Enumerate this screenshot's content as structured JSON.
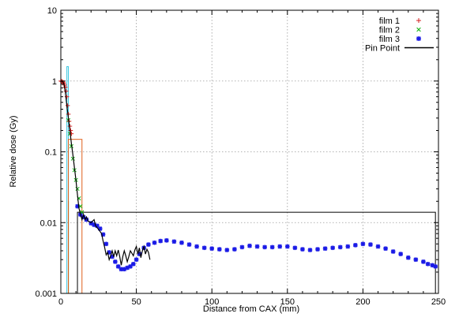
{
  "chart_data": {
    "type": "scatter",
    "xlabel": "Distance from CAX (mm)",
    "ylabel": "Relative dose (Gy)",
    "xlim": [
      0,
      250
    ],
    "ylim": [
      0.001,
      10
    ],
    "yscale": "log",
    "grid": true,
    "legend_position": "top-right",
    "x_ticks": [
      "0",
      "50",
      "100",
      "150",
      "200",
      "250"
    ],
    "y_ticks": [
      "0.001",
      "0.01",
      "0.1",
      "1",
      "10"
    ],
    "series": [
      {
        "name": "film 1",
        "marker": "+",
        "color": "#d62020",
        "points": [
          [
            0,
            1.0
          ],
          [
            0.5,
            0.99
          ],
          [
            1,
            0.98
          ],
          [
            1.5,
            0.96
          ],
          [
            2,
            0.93
          ],
          [
            2.5,
            0.88
          ],
          [
            3,
            0.82
          ],
          [
            3.5,
            0.72
          ],
          [
            4,
            0.6
          ],
          [
            4.5,
            0.45
          ],
          [
            5,
            0.34
          ],
          [
            5.5,
            0.27
          ],
          [
            6,
            0.23
          ],
          [
            6.5,
            0.2
          ],
          [
            7,
            0.18
          ]
        ]
      },
      {
        "name": "film 2",
        "marker": "x",
        "color": "#10b010",
        "points": [
          [
            5,
            0.28
          ],
          [
            6,
            0.18
          ],
          [
            7,
            0.12
          ],
          [
            8,
            0.08
          ],
          [
            9,
            0.055
          ],
          [
            10,
            0.04
          ],
          [
            11,
            0.03
          ],
          [
            12,
            0.022
          ],
          [
            13,
            0.017
          ],
          [
            14,
            0.014
          ]
        ]
      },
      {
        "name": "film 3",
        "marker": "*",
        "color": "#1a1ae6",
        "points": [
          [
            11,
            0.017
          ],
          [
            13,
            0.013
          ],
          [
            15,
            0.012
          ],
          [
            17,
            0.011
          ],
          [
            20,
            0.0098
          ],
          [
            22,
            0.0093
          ],
          [
            24,
            0.009
          ],
          [
            26,
            0.0082
          ],
          [
            28,
            0.0068
          ],
          [
            30,
            0.005
          ],
          [
            32,
            0.0038
          ],
          [
            34,
            0.0033
          ],
          [
            36,
            0.0028
          ],
          [
            38,
            0.0024
          ],
          [
            40,
            0.0022
          ],
          [
            42,
            0.0022
          ],
          [
            44,
            0.0023
          ],
          [
            46,
            0.0024
          ],
          [
            48,
            0.0026
          ],
          [
            50,
            0.003
          ],
          [
            52,
            0.0036
          ],
          [
            55,
            0.0044
          ],
          [
            58,
            0.0049
          ],
          [
            62,
            0.0052
          ],
          [
            66,
            0.0055
          ],
          [
            70,
            0.0056
          ],
          [
            75,
            0.0054
          ],
          [
            80,
            0.0052
          ],
          [
            85,
            0.0049
          ],
          [
            90,
            0.0046
          ],
          [
            95,
            0.0044
          ],
          [
            100,
            0.0043
          ],
          [
            105,
            0.0042
          ],
          [
            110,
            0.0041
          ],
          [
            115,
            0.0042
          ],
          [
            120,
            0.0045
          ],
          [
            125,
            0.0047
          ],
          [
            130,
            0.0046
          ],
          [
            135,
            0.0045
          ],
          [
            140,
            0.0045
          ],
          [
            145,
            0.0046
          ],
          [
            150,
            0.0046
          ],
          [
            155,
            0.0044
          ],
          [
            160,
            0.0042
          ],
          [
            165,
            0.0041
          ],
          [
            170,
            0.0042
          ],
          [
            175,
            0.0043
          ],
          [
            180,
            0.0044
          ],
          [
            185,
            0.0045
          ],
          [
            190,
            0.0046
          ],
          [
            195,
            0.0048
          ],
          [
            200,
            0.005
          ],
          [
            205,
            0.0049
          ],
          [
            210,
            0.0046
          ],
          [
            215,
            0.0043
          ],
          [
            220,
            0.0039
          ],
          [
            225,
            0.0036
          ],
          [
            230,
            0.0032
          ],
          [
            235,
            0.003
          ],
          [
            240,
            0.0028
          ],
          [
            243,
            0.0026
          ],
          [
            246,
            0.0025
          ],
          [
            248,
            0.0024
          ]
        ]
      },
      {
        "name": "Pin Point",
        "marker": "line",
        "color": "#000000",
        "points": [
          [
            0,
            1.0
          ],
          [
            1,
            0.99
          ],
          [
            2,
            0.92
          ],
          [
            3,
            0.7
          ],
          [
            4,
            0.45
          ],
          [
            5,
            0.3
          ],
          [
            6,
            0.2
          ],
          [
            7,
            0.13
          ],
          [
            8,
            0.09
          ],
          [
            9,
            0.06
          ],
          [
            10,
            0.04
          ],
          [
            11,
            0.025
          ],
          [
            12,
            0.016
          ],
          [
            13,
            0.013
          ],
          [
            14,
            0.011
          ],
          [
            15,
            0.013
          ],
          [
            16,
            0.011
          ],
          [
            17,
            0.012
          ],
          [
            18,
            0.0105
          ],
          [
            20,
            0.01
          ],
          [
            22,
            0.011
          ],
          [
            23,
            0.009
          ],
          [
            25,
            0.008
          ],
          [
            27,
            0.007
          ],
          [
            28,
            0.0055
          ],
          [
            29,
            0.0045
          ],
          [
            30,
            0.0035
          ],
          [
            31,
            0.0038
          ],
          [
            32,
            0.003
          ],
          [
            33,
            0.0034
          ],
          [
            34,
            0.004
          ],
          [
            35,
            0.0033
          ],
          [
            36,
            0.004
          ],
          [
            37,
            0.0034
          ],
          [
            38,
            0.0041
          ],
          [
            39,
            0.0033
          ],
          [
            40,
            0.0025
          ],
          [
            41,
            0.0033
          ],
          [
            42,
            0.004
          ],
          [
            43,
            0.0034
          ],
          [
            44,
            0.0028
          ],
          [
            45,
            0.0033
          ],
          [
            46,
            0.004
          ],
          [
            47,
            0.0037
          ],
          [
            48,
            0.0034
          ],
          [
            49,
            0.0041
          ],
          [
            50,
            0.0046
          ],
          [
            51,
            0.0036
          ],
          [
            52,
            0.0044
          ],
          [
            53,
            0.0032
          ],
          [
            54,
            0.004
          ],
          [
            55,
            0.0046
          ],
          [
            56,
            0.0036
          ],
          [
            57,
            0.0042
          ],
          [
            58,
            0.0038
          ],
          [
            59,
            0.003
          ]
        ]
      }
    ],
    "boxes": [
      {
        "color": "#36c6e0",
        "x": [
          4,
          5
        ],
        "y": [
          0.001,
          1.6
        ]
      },
      {
        "color": "#008000",
        "x": [
          5,
          5
        ],
        "y": [
          0.001,
          0.02
        ]
      },
      {
        "color": "#e0601a",
        "x": [
          5,
          14
        ],
        "y": [
          0.001,
          0.15
        ]
      },
      {
        "color": "#000000",
        "x": [
          11,
          248
        ],
        "y": [
          0.001,
          0.014
        ]
      }
    ]
  }
}
